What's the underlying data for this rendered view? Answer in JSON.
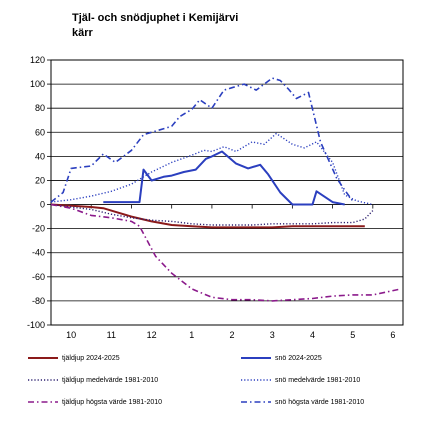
{
  "chart_data": {
    "type": "line",
    "title_lines": [
      "Tjäl- och snödjuphet i Kemijärvi",
      "kärr"
    ],
    "xlabel": "",
    "ylabel": "",
    "x_tick_labels": [
      "10",
      "11",
      "12",
      "1",
      "2",
      "3",
      "4",
      "5",
      "6"
    ],
    "y_ticks": [
      "120",
      "100",
      "80",
      "60",
      "40",
      "20",
      "0",
      "-20",
      "-40",
      "-60",
      "-80",
      "-100"
    ],
    "ylim": [
      -100,
      120
    ],
    "xlim": [
      0,
      8.75
    ],
    "grid": "horizontal",
    "legend_position": "bottom",
    "series": [
      {
        "name": "tjäldjup 2024-2025",
        "color": "#8b1a1a",
        "style": "solid",
        "points": [
          [
            0,
            0
          ],
          [
            0.5,
            -1
          ],
          [
            1,
            -2
          ],
          [
            1.3,
            -3
          ],
          [
            1.6,
            -6
          ],
          [
            2,
            -10
          ],
          [
            2.5,
            -14
          ],
          [
            3,
            -17
          ],
          [
            3.5,
            -18
          ],
          [
            4,
            -19
          ],
          [
            4.5,
            -19
          ],
          [
            5,
            -19
          ],
          [
            5.5,
            -19
          ],
          [
            6,
            -18
          ],
          [
            6.5,
            -18
          ],
          [
            7,
            -18
          ],
          [
            7.5,
            -18
          ],
          [
            7.8,
            -18
          ]
        ]
      },
      {
        "name": "snö 2024-2025",
        "color": "#2b3fbf",
        "style": "solid",
        "points": [
          [
            1.3,
            2
          ],
          [
            1.8,
            2
          ],
          [
            2.2,
            2
          ],
          [
            2.3,
            29
          ],
          [
            2.5,
            20
          ],
          [
            2.8,
            23
          ],
          [
            3,
            24
          ],
          [
            3.3,
            27
          ],
          [
            3.6,
            29
          ],
          [
            3.85,
            38
          ],
          [
            4,
            40
          ],
          [
            4.25,
            44
          ],
          [
            4.6,
            34
          ],
          [
            4.9,
            30
          ],
          [
            5.2,
            33
          ],
          [
            5.4,
            25
          ],
          [
            5.7,
            10
          ],
          [
            6,
            0
          ],
          [
            6.5,
            0
          ],
          [
            6.6,
            11
          ],
          [
            7,
            2
          ],
          [
            7.3,
            0
          ]
        ]
      },
      {
        "name": "tjäldjup medelvärde 1981-2010",
        "color": "#2b1e6e",
        "style": "dotted",
        "points": [
          [
            0,
            0
          ],
          [
            0.5,
            -2
          ],
          [
            1,
            -4
          ],
          [
            1.5,
            -8
          ],
          [
            2,
            -11
          ],
          [
            2.5,
            -13
          ],
          [
            3,
            -14
          ],
          [
            3.5,
            -16
          ],
          [
            4,
            -17
          ],
          [
            4.5,
            -17
          ],
          [
            5,
            -17
          ],
          [
            5.5,
            -16
          ],
          [
            6,
            -16
          ],
          [
            6.5,
            -16
          ],
          [
            7,
            -15
          ],
          [
            7.5,
            -15
          ],
          [
            7.8,
            -12
          ],
          [
            8,
            -5
          ]
        ]
      },
      {
        "name": "snö medelvärde 1981-2010",
        "color": "#2b3fbf",
        "style": "dotted",
        "points": [
          [
            0,
            2
          ],
          [
            0.5,
            4
          ],
          [
            1,
            7
          ],
          [
            1.5,
            11
          ],
          [
            2,
            17
          ],
          [
            2.5,
            27
          ],
          [
            3,
            35
          ],
          [
            3.5,
            41
          ],
          [
            3.8,
            45
          ],
          [
            4,
            44
          ],
          [
            4.3,
            48
          ],
          [
            4.6,
            44
          ],
          [
            5,
            52
          ],
          [
            5.3,
            50
          ],
          [
            5.6,
            59
          ],
          [
            6,
            50
          ],
          [
            6.3,
            47
          ],
          [
            6.6,
            52
          ],
          [
            7,
            35
          ],
          [
            7.3,
            8
          ],
          [
            7.6,
            3
          ],
          [
            8,
            0
          ]
        ]
      },
      {
        "name": "tjäldjup högsta värde 1981-2010",
        "color": "#8b1a8b",
        "style": "dashdot",
        "points": [
          [
            0,
            0
          ],
          [
            0.5,
            -3
          ],
          [
            1,
            -9
          ],
          [
            1.5,
            -11
          ],
          [
            2,
            -14
          ],
          [
            2.2,
            -18
          ],
          [
            2.6,
            -43
          ],
          [
            3,
            -57
          ],
          [
            3.5,
            -70
          ],
          [
            4,
            -77
          ],
          [
            4.5,
            -79
          ],
          [
            5,
            -79
          ],
          [
            5.5,
            -80
          ],
          [
            6,
            -79
          ],
          [
            6.5,
            -78
          ],
          [
            7,
            -76
          ],
          [
            7.5,
            -75
          ],
          [
            8,
            -75
          ],
          [
            8.7,
            -70
          ]
        ]
      },
      {
        "name": "snö högsta värde 1981-2010",
        "color": "#2b3fbf",
        "style": "dashdot",
        "points": [
          [
            0,
            2
          ],
          [
            0.3,
            10
          ],
          [
            0.5,
            30
          ],
          [
            1,
            32
          ],
          [
            1.3,
            42
          ],
          [
            1.6,
            35
          ],
          [
            2,
            45
          ],
          [
            2.3,
            58
          ],
          [
            2.6,
            61
          ],
          [
            3,
            65
          ],
          [
            3.2,
            73
          ],
          [
            3.5,
            79
          ],
          [
            3.7,
            87
          ],
          [
            4,
            80
          ],
          [
            4.3,
            95
          ],
          [
            4.5,
            97
          ],
          [
            4.8,
            100
          ],
          [
            5.1,
            95
          ],
          [
            5.3,
            100
          ],
          [
            5.5,
            105
          ],
          [
            5.7,
            103
          ],
          [
            5.9,
            96
          ],
          [
            6.1,
            88
          ],
          [
            6.4,
            93
          ],
          [
            6.7,
            52
          ],
          [
            7.1,
            22
          ],
          [
            7.3,
            12
          ],
          [
            7.5,
            3
          ]
        ]
      }
    ]
  }
}
